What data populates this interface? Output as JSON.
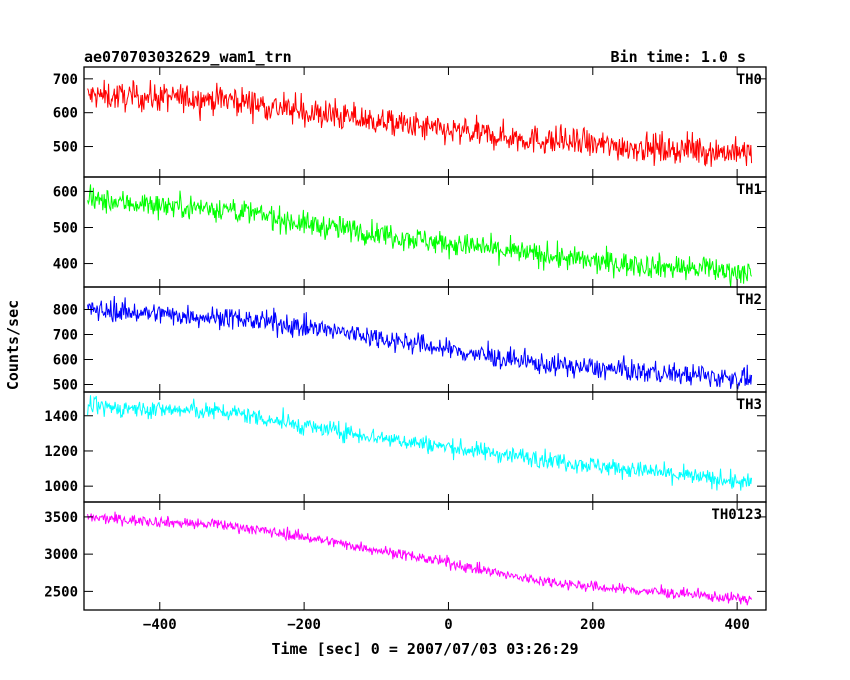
{
  "header": {
    "title": "ae070703032629_wam1_trn",
    "bin_time": "Bin time: 1.0 s"
  },
  "axes": {
    "xlabel": "Time [sec] 0 = 2007/07/03 03:26:29",
    "ylabel": "Counts/sec"
  },
  "chart_data": {
    "type": "line",
    "title": "ae070703032629_wam1_trn",
    "xlabel": "Time [sec] 0 = 2007/07/03 03:26:29",
    "ylabel": "Counts/sec",
    "xlim": [
      -505,
      440
    ],
    "x_ticks": [
      -400,
      -200,
      0,
      200,
      400
    ],
    "x_range": [
      -500,
      420
    ],
    "x_step": 1.0,
    "grid": false,
    "legend": "none",
    "panels": [
      {
        "name": "TH0",
        "color": "#ff0000",
        "ylim": [
          410,
          735
        ],
        "y_ticks": [
          500,
          600,
          700
        ],
        "trend": [
          [
            -500,
            650
          ],
          [
            -300,
            640
          ],
          [
            -200,
            600
          ],
          [
            -100,
            575
          ],
          [
            0,
            545
          ],
          [
            200,
            505
          ],
          [
            420,
            480
          ]
        ],
        "noise": 38
      },
      {
        "name": "TH1",
        "color": "#00ff00",
        "ylim": [
          335,
          640
        ],
        "y_ticks": [
          400,
          500,
          600
        ],
        "trend": [
          [
            -500,
            575
          ],
          [
            -300,
            550
          ],
          [
            -200,
            510
          ],
          [
            -100,
            485
          ],
          [
            0,
            455
          ],
          [
            200,
            405
          ],
          [
            420,
            375
          ]
        ],
        "noise": 30
      },
      {
        "name": "TH2",
        "color": "#0000ff",
        "ylim": [
          470,
          890
        ],
        "y_ticks": [
          500,
          600,
          700,
          800
        ],
        "trend": [
          [
            -500,
            800
          ],
          [
            -300,
            765
          ],
          [
            -200,
            730
          ],
          [
            -100,
            690
          ],
          [
            0,
            640
          ],
          [
            100,
            590
          ],
          [
            200,
            565
          ],
          [
            420,
            520
          ]
        ],
        "noise": 38
      },
      {
        "name": "TH3",
        "color": "#00ffff",
        "ylim": [
          910,
          1535
        ],
        "y_ticks": [
          1000,
          1200,
          1400
        ],
        "trend": [
          [
            -500,
            1450
          ],
          [
            -300,
            1420
          ],
          [
            -200,
            1340
          ],
          [
            -100,
            1280
          ],
          [
            0,
            1220
          ],
          [
            200,
            1120
          ],
          [
            420,
            1015
          ]
        ],
        "noise": 45
      },
      {
        "name": "TH0123",
        "color": "#ff00ff",
        "ylim": [
          2250,
          3700
        ],
        "y_ticks": [
          2500,
          3000,
          3500
        ],
        "trend": [
          [
            -500,
            3490
          ],
          [
            -300,
            3380
          ],
          [
            -200,
            3230
          ],
          [
            -100,
            3060
          ],
          [
            0,
            2880
          ],
          [
            100,
            2680
          ],
          [
            200,
            2560
          ],
          [
            420,
            2390
          ]
        ],
        "noise": 65
      }
    ]
  }
}
